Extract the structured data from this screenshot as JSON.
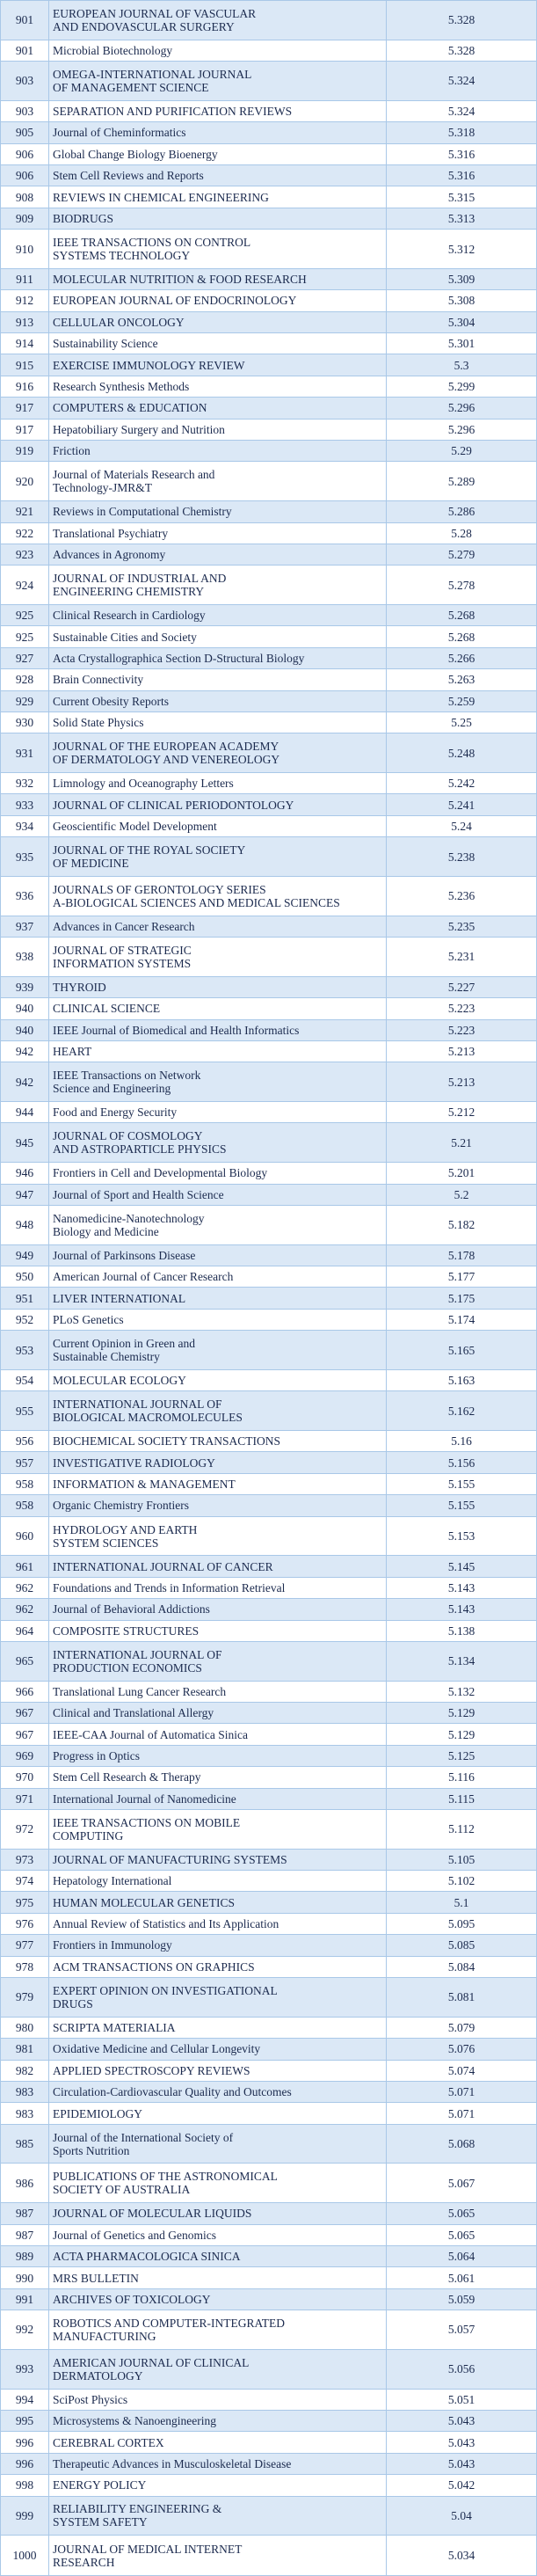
{
  "table": {
    "rows": [
      [
        901,
        "EUROPEAN JOURNAL OF VASCULAR\nAND ENDOVASCULAR SURGERY",
        5.328
      ],
      [
        901,
        "Microbial Biotechnology",
        5.328
      ],
      [
        903,
        "OMEGA-INTERNATIONAL JOURNAL\nOF MANAGEMENT SCIENCE",
        5.324
      ],
      [
        903,
        "SEPARATION AND PURIFICATION REVIEWS",
        5.324
      ],
      [
        905,
        "Journal of Cheminformatics",
        5.318
      ],
      [
        906,
        "Global Change Biology Bioenergy",
        5.316
      ],
      [
        906,
        "Stem Cell Reviews and Reports",
        5.316
      ],
      [
        908,
        "REVIEWS IN CHEMICAL ENGINEERING",
        5.315
      ],
      [
        909,
        "BIODRUGS",
        5.313
      ],
      [
        910,
        "IEEE TRANSACTIONS ON CONTROL\n SYSTEMS TECHNOLOGY",
        5.312
      ],
      [
        911,
        "MOLECULAR NUTRITION & FOOD RESEARCH",
        5.309
      ],
      [
        912,
        "EUROPEAN JOURNAL OF ENDOCRINOLOGY",
        5.308
      ],
      [
        913,
        "CELLULAR ONCOLOGY",
        5.304
      ],
      [
        914,
        "Sustainability Science",
        5.301
      ],
      [
        915,
        "EXERCISE IMMUNOLOGY REVIEW",
        5.3
      ],
      [
        916,
        "Research Synthesis Methods",
        5.299
      ],
      [
        917,
        "COMPUTERS & EDUCATION",
        5.296
      ],
      [
        917,
        "Hepatobiliary Surgery and Nutrition",
        5.296
      ],
      [
        919,
        "Friction",
        5.29
      ],
      [
        920,
        "Journal of Materials Research and\nTechnology-JMR&T",
        5.289
      ],
      [
        921,
        "Reviews in Computational Chemistry",
        5.286
      ],
      [
        922,
        "Translational Psychiatry",
        5.28
      ],
      [
        923,
        "Advances in Agronomy",
        5.279
      ],
      [
        924,
        "JOURNAL OF INDUSTRIAL AND\nENGINEERING CHEMISTRY",
        5.278
      ],
      [
        925,
        "Clinical Research in Cardiology",
        5.268
      ],
      [
        925,
        "Sustainable Cities and Society",
        5.268
      ],
      [
        927,
        "Acta Crystallographica Section D-Structural Biology",
        5.266
      ],
      [
        928,
        "Brain Connectivity",
        5.263
      ],
      [
        929,
        "Current Obesity Reports",
        5.259
      ],
      [
        930,
        "Solid State Physics",
        5.25
      ],
      [
        931,
        "JOURNAL OF THE EUROPEAN ACADEMY\nOF DERMATOLOGY AND VENEREOLOGY",
        5.248
      ],
      [
        932,
        "Limnology and Oceanography Letters",
        5.242
      ],
      [
        933,
        "JOURNAL OF CLINICAL PERIODONTOLOGY",
        5.241
      ],
      [
        934,
        "Geoscientific Model Development",
        5.24
      ],
      [
        935,
        "JOURNAL OF THE ROYAL SOCIETY\nOF MEDICINE",
        5.238
      ],
      [
        936,
        "JOURNALS OF GERONTOLOGY SERIES\n A-BIOLOGICAL SCIENCES AND MEDICAL SCIENCES",
        5.236
      ],
      [
        937,
        "Advances in Cancer Research",
        5.235
      ],
      [
        938,
        "JOURNAL OF STRATEGIC\nINFORMATION SYSTEMS",
        5.231
      ],
      [
        939,
        "THYROID",
        5.227
      ],
      [
        940,
        "CLINICAL SCIENCE",
        5.223
      ],
      [
        940,
        "IEEE Journal of Biomedical and Health Informatics",
        5.223
      ],
      [
        942,
        "HEART",
        5.213
      ],
      [
        942,
        "IEEE Transactions on Network\nScience and Engineering",
        5.213
      ],
      [
        944,
        "Food and Energy Security",
        5.212
      ],
      [
        945,
        "JOURNAL OF COSMOLOGY\nAND ASTROPARTICLE PHYSICS",
        5.21
      ],
      [
        946,
        "Frontiers in Cell and Developmental Biology",
        5.201
      ],
      [
        947,
        "Journal of Sport and Health Science",
        5.2
      ],
      [
        948,
        "Nanomedicine-Nanotechnology\nBiology and Medicine",
        5.182
      ],
      [
        949,
        "Journal of Parkinsons Disease",
        5.178
      ],
      [
        950,
        "American Journal of Cancer Research",
        5.177
      ],
      [
        951,
        "LIVER INTERNATIONAL",
        5.175
      ],
      [
        952,
        "PLoS Genetics",
        5.174
      ],
      [
        953,
        "Current Opinion in Green and\nSustainable Chemistry",
        5.165
      ],
      [
        954,
        "MOLECULAR ECOLOGY",
        5.163
      ],
      [
        955,
        "INTERNATIONAL JOURNAL OF\nBIOLOGICAL MACROMOLECULES",
        5.162
      ],
      [
        956,
        "BIOCHEMICAL SOCIETY TRANSACTIONS",
        5.16
      ],
      [
        957,
        "INVESTIGATIVE RADIOLOGY",
        5.156
      ],
      [
        958,
        "INFORMATION & MANAGEMENT",
        5.155
      ],
      [
        958,
        "Organic Chemistry Frontiers",
        5.155
      ],
      [
        960,
        "HYDROLOGY AND EARTH\nSYSTEM SCIENCES",
        5.153
      ],
      [
        961,
        "INTERNATIONAL JOURNAL OF CANCER",
        5.145
      ],
      [
        962,
        "Foundations and Trends in Information Retrieval",
        5.143
      ],
      [
        962,
        "Journal of Behavioral Addictions",
        5.143
      ],
      [
        964,
        "COMPOSITE STRUCTURES",
        5.138
      ],
      [
        965,
        "INTERNATIONAL JOURNAL OF\nPRODUCTION ECONOMICS",
        5.134
      ],
      [
        966,
        "Translational Lung Cancer Research",
        5.132
      ],
      [
        967,
        "Clinical and Translational Allergy",
        5.129
      ],
      [
        967,
        "IEEE-CAA Journal of Automatica Sinica",
        5.129
      ],
      [
        969,
        "Progress in Optics",
        5.125
      ],
      [
        970,
        "Stem Cell Research & Therapy",
        5.116
      ],
      [
        971,
        "International Journal of Nanomedicine",
        5.115
      ],
      [
        972,
        "IEEE TRANSACTIONS ON MOBILE\nCOMPUTING",
        5.112
      ],
      [
        973,
        "JOURNAL OF MANUFACTURING SYSTEMS",
        5.105
      ],
      [
        974,
        "Hepatology International",
        5.102
      ],
      [
        975,
        "HUMAN MOLECULAR GENETICS",
        5.1
      ],
      [
        976,
        "Annual Review of Statistics and Its Application",
        5.095
      ],
      [
        977,
        "Frontiers in Immunology",
        5.085
      ],
      [
        978,
        "ACM TRANSACTIONS ON GRAPHICS",
        5.084
      ],
      [
        979,
        "EXPERT OPINION ON INVESTIGATIONAL\nDRUGS",
        5.081
      ],
      [
        980,
        "SCRIPTA MATERIALIA",
        5.079
      ],
      [
        981,
        "Oxidative Medicine and Cellular Longevity",
        5.076
      ],
      [
        982,
        "APPLIED SPECTROSCOPY REVIEWS",
        5.074
      ],
      [
        983,
        "Circulation-Cardiovascular Quality and Outcomes",
        5.071
      ],
      [
        983,
        "EPIDEMIOLOGY",
        5.071
      ],
      [
        985,
        "Journal of the International Society of\nSports Nutrition",
        5.068
      ],
      [
        986,
        "PUBLICATIONS OF THE ASTRONOMICAL\nSOCIETY OF AUSTRALIA",
        5.067
      ],
      [
        987,
        "JOURNAL OF MOLECULAR LIQUIDS",
        5.065
      ],
      [
        987,
        "Journal of Genetics and Genomics",
        5.065
      ],
      [
        989,
        "ACTA PHARMACOLOGICA SINICA",
        5.064
      ],
      [
        990,
        "MRS BULLETIN",
        5.061
      ],
      [
        991,
        "ARCHIVES OF TOXICOLOGY",
        5.059
      ],
      [
        992,
        "ROBOTICS AND COMPUTER-INTEGRATED\nMANUFACTURING",
        5.057
      ],
      [
        993,
        "AMERICAN JOURNAL OF CLINICAL\nDERMATOLOGY",
        5.056
      ],
      [
        994,
        "SciPost Physics",
        5.051
      ],
      [
        995,
        "Microsystems & Nanoengineering",
        5.043
      ],
      [
        996,
        "CEREBRAL CORTEX",
        5.043
      ],
      [
        996,
        "Therapeutic Advances in Musculoskeletal Disease",
        5.043
      ],
      [
        998,
        "ENERGY POLICY",
        5.042
      ],
      [
        999,
        "RELIABILITY ENGINEERING &\nSYSTEM SAFETY",
        5.04
      ],
      [
        1000,
        "JOURNAL OF MEDICAL INTERNET\nRESEARCH",
        5.034
      ]
    ]
  }
}
